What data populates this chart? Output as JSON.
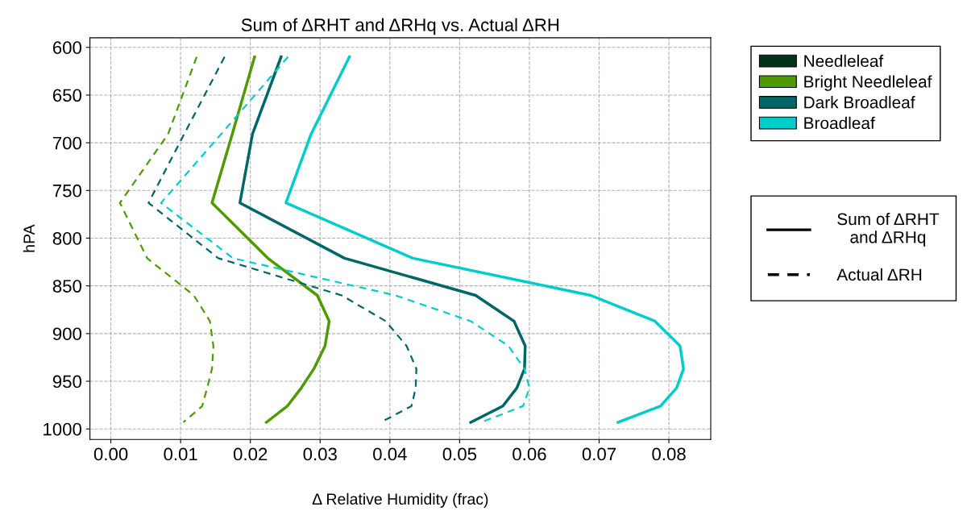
{
  "chart_data": {
    "type": "line",
    "title": "Sum of ΔRHT and ΔRHq vs. Actual ΔRH",
    "xlabel": "Δ Relative Humidity (frac)",
    "ylabel": "hPA",
    "x": [
      610,
      691,
      763,
      821,
      860,
      887,
      913,
      937,
      957,
      976,
      993
    ],
    "orientation": "horizontal",
    "xlim": [
      -0.003,
      0.086
    ],
    "xticks": [
      {
        "value": 0,
        "label": "0.00"
      },
      0.01,
      0.02,
      0.03,
      0.04,
      0.05,
      0.06,
      0.07,
      0.08
    ],
    "ylim": [
      1011,
      590
    ],
    "yticks": [
      600,
      650,
      700,
      750,
      800,
      850,
      900,
      950,
      1000
    ],
    "grid": true,
    "legend": "right",
    "series": [
      {
        "name": "Needleleaf",
        "color": "#003319",
        "values": [
          null,
          null,
          null,
          null,
          null,
          null,
          null,
          null,
          null,
          null,
          null
        ]
      },
      {
        "name": "Bright Needleleaf",
        "color": "#4f9a00",
        "values": [
          0.0206,
          0.0174,
          0.0145,
          0.0225,
          0.0296,
          0.0313,
          0.0307,
          0.0291,
          0.0273,
          0.0253,
          0.0223
        ]
      },
      {
        "name": "Dark Broadleaf",
        "color": "#006666",
        "values": [
          0.0244,
          0.0203,
          0.0185,
          0.0335,
          0.0523,
          0.0578,
          0.0594,
          0.0593,
          0.0582,
          0.0562,
          0.0516
        ]
      },
      {
        "name": "Broadleaf",
        "color": "#00cccc",
        "values": [
          0.0342,
          0.0287,
          0.0251,
          0.0433,
          0.0688,
          0.078,
          0.0816,
          0.0821,
          0.0811,
          0.0788,
          0.0727
        ]
      },
      {
        "color": "#4f9a00",
        "line_style": "dashed",
        "values": [
          0.0123,
          0.0082,
          0.0013,
          0.0052,
          0.0119,
          0.0142,
          0.0147,
          0.0145,
          0.0138,
          0.0131,
          0.0104
        ]
      },
      {
        "color": "#006666",
        "line_style": "dashed",
        "values": [
          0.0163,
          0.0105,
          0.0054,
          0.0154,
          0.0331,
          0.0394,
          0.0424,
          0.0438,
          0.0437,
          0.0431,
          0.0387
        ]
      },
      {
        "color": "#00cccc",
        "line_style": "dashed",
        "values": [
          0.0254,
          0.0158,
          0.0072,
          0.0175,
          0.0408,
          0.0516,
          0.057,
          0.0593,
          0.06,
          0.0591,
          0.0531
        ]
      },
      {
        "name": "Sum of ΔRHT\nand ΔRHq",
        "color": "#000000",
        "line_style": "solid",
        "values": [
          null,
          null,
          null,
          null,
          null,
          null,
          null,
          null,
          null,
          null,
          null
        ]
      },
      {
        "name": "Actual ΔRH",
        "color": "#000000",
        "line_style": "dashed",
        "values": [
          null,
          null,
          null,
          null,
          null,
          null,
          null,
          null,
          null,
          null,
          null
        ]
      }
    ]
  }
}
